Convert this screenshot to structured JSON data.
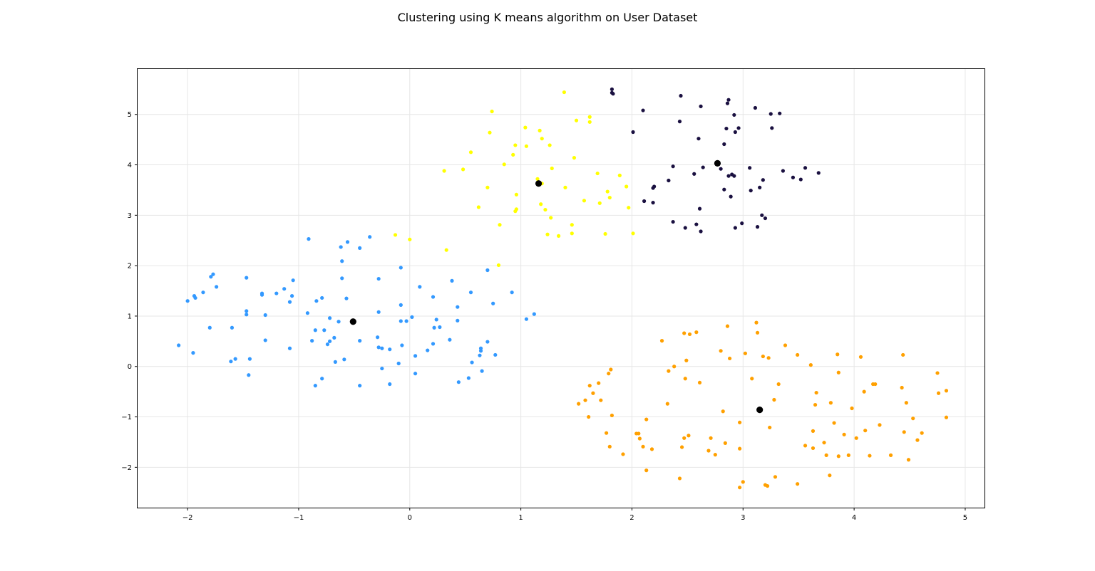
{
  "chart_data": {
    "type": "scatter",
    "title": "Clustering using K means algorithm on User Dataset",
    "xlabel": "",
    "ylabel": "",
    "xlim": [
      -2.45,
      5.18
    ],
    "ylim": [
      -2.8,
      5.9
    ],
    "xticks": [
      -2,
      -1,
      0,
      1,
      2,
      3,
      4,
      5
    ],
    "xtick_labels": [
      "−2",
      "−1",
      "0",
      "1",
      "2",
      "3",
      "4",
      "5"
    ],
    "yticks": [
      -2,
      -1,
      0,
      1,
      2,
      3,
      4,
      5
    ],
    "ytick_labels": [
      "−2",
      "−1",
      "0",
      "1",
      "2",
      "3",
      "4",
      "5"
    ],
    "grid": true,
    "legend": "none",
    "series": [
      {
        "color": "#3399ff",
        "points": [
          [
            -2.08,
            0.42
          ],
          [
            -2.0,
            1.3
          ],
          [
            -1.94,
            1.4
          ],
          [
            -1.93,
            1.36
          ],
          [
            -1.95,
            0.27
          ],
          [
            -1.86,
            1.47
          ],
          [
            -1.8,
            0.77
          ],
          [
            -1.79,
            1.78
          ],
          [
            -1.77,
            1.83
          ],
          [
            -1.74,
            1.58
          ],
          [
            -1.61,
            0.1
          ],
          [
            -1.6,
            0.77
          ],
          [
            -1.57,
            0.15
          ],
          [
            -1.47,
            1.76
          ],
          [
            -1.47,
            1.1
          ],
          [
            -1.47,
            1.03
          ],
          [
            -1.45,
            -0.17
          ],
          [
            -1.44,
            0.15
          ],
          [
            -1.33,
            1.45
          ],
          [
            -1.33,
            1.42
          ],
          [
            -1.3,
            0.52
          ],
          [
            -1.3,
            1.02
          ],
          [
            -1.2,
            1.45
          ],
          [
            -1.13,
            1.54
          ],
          [
            -1.08,
            1.28
          ],
          [
            -1.08,
            0.36
          ],
          [
            -1.06,
            1.4
          ],
          [
            -1.05,
            1.71
          ],
          [
            -0.92,
            1.06
          ],
          [
            -0.91,
            2.53
          ],
          [
            -0.88,
            0.51
          ],
          [
            -0.85,
            -0.38
          ],
          [
            -0.85,
            0.72
          ],
          [
            -0.84,
            1.3
          ],
          [
            -0.79,
            1.36
          ],
          [
            -0.79,
            -0.24
          ],
          [
            -0.77,
            0.72
          ],
          [
            -0.74,
            0.44
          ],
          [
            -0.72,
            0.5
          ],
          [
            -0.72,
            0.96
          ],
          [
            -0.68,
            0.57
          ],
          [
            -0.67,
            0.09
          ],
          [
            -0.64,
            0.89
          ],
          [
            -0.62,
            2.37
          ],
          [
            -0.61,
            2.09
          ],
          [
            -0.61,
            1.75
          ],
          [
            -0.59,
            0.14
          ],
          [
            -0.57,
            1.35
          ],
          [
            -0.56,
            2.47
          ],
          [
            -0.45,
            2.35
          ],
          [
            -0.45,
            0.51
          ],
          [
            -0.45,
            -0.38
          ],
          [
            -0.36,
            2.57
          ],
          [
            -0.29,
            0.58
          ],
          [
            -0.28,
            1.74
          ],
          [
            -0.28,
            1.08
          ],
          [
            -0.28,
            0.38
          ],
          [
            -0.25,
            0.36
          ],
          [
            -0.25,
            -0.04
          ],
          [
            -0.18,
            0.34
          ],
          [
            -0.18,
            -0.35
          ],
          [
            -0.1,
            0.06
          ],
          [
            -0.08,
            1.96
          ],
          [
            -0.08,
            1.22
          ],
          [
            -0.08,
            0.9
          ],
          [
            -0.07,
            0.42
          ],
          [
            -0.03,
            0.9
          ],
          [
            0.02,
            0.98
          ],
          [
            0.05,
            0.21
          ],
          [
            0.05,
            -0.14
          ],
          [
            0.09,
            1.58
          ],
          [
            0.16,
            0.32
          ],
          [
            0.21,
            0.45
          ],
          [
            0.21,
            1.38
          ],
          [
            0.22,
            0.77
          ],
          [
            0.24,
            0.93
          ],
          [
            0.27,
            0.78
          ],
          [
            0.36,
            0.53
          ],
          [
            0.38,
            1.7
          ],
          [
            0.43,
            1.18
          ],
          [
            0.43,
            0.91
          ],
          [
            0.44,
            -0.31
          ],
          [
            0.55,
            1.47
          ],
          [
            0.56,
            0.08
          ],
          [
            0.63,
            0.22
          ],
          [
            0.64,
            0.36
          ],
          [
            0.64,
            0.31
          ],
          [
            0.65,
            -0.09
          ],
          [
            0.7,
            1.91
          ],
          [
            0.7,
            0.49
          ],
          [
            0.75,
            1.25
          ],
          [
            0.77,
            0.23
          ],
          [
            0.92,
            1.47
          ],
          [
            1.05,
            0.94
          ],
          [
            1.12,
            1.04
          ],
          [
            0.53,
            -0.23
          ]
        ]
      },
      {
        "color": "#ffff00",
        "points": [
          [
            -0.13,
            2.61
          ],
          [
            0.0,
            2.52
          ],
          [
            0.31,
            3.88
          ],
          [
            0.33,
            2.31
          ],
          [
            0.48,
            3.91
          ],
          [
            0.55,
            4.25
          ],
          [
            0.62,
            3.16
          ],
          [
            0.7,
            3.55
          ],
          [
            0.72,
            4.64
          ],
          [
            0.74,
            5.06
          ],
          [
            0.8,
            2.01
          ],
          [
            0.81,
            2.81
          ],
          [
            0.85,
            4.01
          ],
          [
            0.93,
            4.2
          ],
          [
            0.95,
            4.39
          ],
          [
            0.95,
            3.08
          ],
          [
            0.96,
            3.12
          ],
          [
            0.96,
            3.41
          ],
          [
            1.04,
            4.74
          ],
          [
            1.05,
            4.37
          ],
          [
            1.15,
            3.72
          ],
          [
            1.17,
            4.68
          ],
          [
            1.18,
            3.22
          ],
          [
            1.19,
            3.63
          ],
          [
            1.19,
            4.52
          ],
          [
            1.22,
            3.11
          ],
          [
            1.24,
            2.62
          ],
          [
            1.26,
            4.39
          ],
          [
            1.27,
            2.95
          ],
          [
            1.28,
            3.93
          ],
          [
            1.34,
            2.59
          ],
          [
            1.39,
            5.44
          ],
          [
            1.4,
            3.55
          ],
          [
            1.46,
            2.81
          ],
          [
            1.46,
            2.64
          ],
          [
            1.48,
            4.14
          ],
          [
            1.5,
            4.88
          ],
          [
            1.57,
            3.29
          ],
          [
            1.62,
            4.95
          ],
          [
            1.62,
            4.85
          ],
          [
            1.69,
            3.83
          ],
          [
            1.71,
            3.24
          ],
          [
            1.76,
            2.63
          ],
          [
            1.78,
            3.47
          ],
          [
            1.8,
            3.35
          ],
          [
            1.89,
            3.79
          ],
          [
            1.95,
            3.57
          ],
          [
            1.97,
            3.15
          ],
          [
            2.01,
            2.64
          ]
        ]
      },
      {
        "color": "#1a1040",
        "points": [
          [
            1.82,
            5.5
          ],
          [
            1.82,
            5.43
          ],
          [
            1.83,
            5.41
          ],
          [
            2.01,
            4.65
          ],
          [
            2.1,
            5.08
          ],
          [
            2.11,
            3.28
          ],
          [
            2.19,
            3.54
          ],
          [
            2.19,
            3.25
          ],
          [
            2.2,
            3.57
          ],
          [
            2.33,
            3.69
          ],
          [
            2.37,
            3.97
          ],
          [
            2.37,
            2.87
          ],
          [
            2.43,
            4.86
          ],
          [
            2.44,
            5.37
          ],
          [
            2.48,
            2.75
          ],
          [
            2.56,
            3.82
          ],
          [
            2.58,
            2.82
          ],
          [
            2.6,
            4.52
          ],
          [
            2.61,
            3.13
          ],
          [
            2.62,
            2.68
          ],
          [
            2.62,
            5.16
          ],
          [
            2.64,
            3.95
          ],
          [
            2.8,
            3.92
          ],
          [
            2.83,
            4.41
          ],
          [
            2.83,
            3.51
          ],
          [
            2.85,
            4.72
          ],
          [
            2.86,
            5.22
          ],
          [
            2.87,
            3.78
          ],
          [
            2.87,
            5.29
          ],
          [
            2.89,
            3.37
          ],
          [
            2.9,
            3.81
          ],
          [
            2.92,
            3.78
          ],
          [
            2.92,
            4.99
          ],
          [
            2.93,
            4.65
          ],
          [
            2.93,
            2.75
          ],
          [
            2.96,
            4.73
          ],
          [
            2.99,
            2.84
          ],
          [
            3.06,
            3.94
          ],
          [
            3.07,
            3.49
          ],
          [
            3.11,
            5.13
          ],
          [
            3.13,
            2.77
          ],
          [
            3.15,
            3.55
          ],
          [
            3.17,
            3.0
          ],
          [
            3.18,
            3.7
          ],
          [
            3.2,
            2.94
          ],
          [
            3.25,
            5.01
          ],
          [
            3.26,
            4.73
          ],
          [
            3.33,
            5.02
          ],
          [
            3.36,
            3.88
          ],
          [
            3.45,
            3.75
          ],
          [
            3.52,
            3.71
          ],
          [
            3.56,
            3.94
          ],
          [
            3.68,
            3.84
          ]
        ]
      },
      {
        "color": "#ffa000",
        "points": [
          [
            1.52,
            -0.74
          ],
          [
            1.58,
            -0.67
          ],
          [
            1.61,
            -1.0
          ],
          [
            1.62,
            -0.38
          ],
          [
            1.65,
            -0.53
          ],
          [
            1.7,
            -0.33
          ],
          [
            1.72,
            -0.67
          ],
          [
            1.77,
            -1.32
          ],
          [
            1.79,
            -0.14
          ],
          [
            1.8,
            -1.59
          ],
          [
            1.81,
            -0.06
          ],
          [
            1.82,
            -0.97
          ],
          [
            1.92,
            -1.74
          ],
          [
            2.04,
            -1.33
          ],
          [
            2.06,
            -1.33
          ],
          [
            2.07,
            -1.43
          ],
          [
            2.1,
            -1.59
          ],
          [
            2.13,
            -1.05
          ],
          [
            2.13,
            -2.06
          ],
          [
            2.18,
            -1.64
          ],
          [
            2.27,
            0.51
          ],
          [
            2.32,
            -0.74
          ],
          [
            2.33,
            -0.09
          ],
          [
            2.38,
            0.0
          ],
          [
            2.43,
            -2.22
          ],
          [
            2.45,
            -1.6
          ],
          [
            2.47,
            -1.42
          ],
          [
            2.47,
            0.66
          ],
          [
            2.48,
            -0.24
          ],
          [
            2.49,
            0.12
          ],
          [
            2.51,
            -1.37
          ],
          [
            2.52,
            0.64
          ],
          [
            2.58,
            0.68
          ],
          [
            2.61,
            -0.32
          ],
          [
            2.69,
            -1.67
          ],
          [
            2.71,
            -1.42
          ],
          [
            2.75,
            -1.75
          ],
          [
            2.8,
            0.31
          ],
          [
            2.82,
            -0.89
          ],
          [
            2.84,
            -1.52
          ],
          [
            2.86,
            0.8
          ],
          [
            2.88,
            0.16
          ],
          [
            2.97,
            -1.63
          ],
          [
            2.97,
            -1.11
          ],
          [
            2.97,
            -2.4
          ],
          [
            3.0,
            -2.29
          ],
          [
            3.02,
            0.26
          ],
          [
            3.08,
            -0.24
          ],
          [
            3.12,
            0.87
          ],
          [
            3.13,
            0.67
          ],
          [
            3.18,
            0.2
          ],
          [
            3.2,
            -2.35
          ],
          [
            3.22,
            -2.37
          ],
          [
            3.23,
            0.17
          ],
          [
            3.24,
            -1.21
          ],
          [
            3.28,
            -0.66
          ],
          [
            3.29,
            -2.19
          ],
          [
            3.32,
            -0.35
          ],
          [
            3.38,
            0.42
          ],
          [
            3.49,
            -2.33
          ],
          [
            3.49,
            0.23
          ],
          [
            3.56,
            -1.57
          ],
          [
            3.61,
            0.03
          ],
          [
            3.63,
            -1.28
          ],
          [
            3.63,
            -1.62
          ],
          [
            3.65,
            -0.76
          ],
          [
            3.66,
            -0.52
          ],
          [
            3.73,
            -1.51
          ],
          [
            3.75,
            -1.76
          ],
          [
            3.78,
            -2.16
          ],
          [
            3.79,
            -0.72
          ],
          [
            3.82,
            -1.12
          ],
          [
            3.85,
            0.24
          ],
          [
            3.86,
            -1.78
          ],
          [
            3.86,
            -0.12
          ],
          [
            3.91,
            -1.35
          ],
          [
            3.95,
            -1.76
          ],
          [
            3.98,
            -0.83
          ],
          [
            4.02,
            -1.42
          ],
          [
            4.06,
            0.19
          ],
          [
            4.09,
            -0.5
          ],
          [
            4.1,
            -1.27
          ],
          [
            4.14,
            -1.77
          ],
          [
            4.17,
            -0.35
          ],
          [
            4.19,
            -0.35
          ],
          [
            4.23,
            -1.16
          ],
          [
            4.33,
            -1.76
          ],
          [
            4.43,
            -0.42
          ],
          [
            4.44,
            0.23
          ],
          [
            4.45,
            -1.3
          ],
          [
            4.47,
            -0.72
          ],
          [
            4.49,
            -1.85
          ],
          [
            4.53,
            -1.03
          ],
          [
            4.57,
            -1.46
          ],
          [
            4.61,
            -1.32
          ],
          [
            4.75,
            -0.13
          ],
          [
            4.76,
            -0.53
          ],
          [
            4.83,
            -0.48
          ],
          [
            4.83,
            -1.01
          ]
        ]
      }
    ],
    "centroids": {
      "color": "#000000",
      "points": [
        [
          -0.51,
          0.89
        ],
        [
          1.16,
          3.63
        ],
        [
          2.77,
          4.03
        ],
        [
          3.15,
          -0.86
        ]
      ]
    }
  }
}
